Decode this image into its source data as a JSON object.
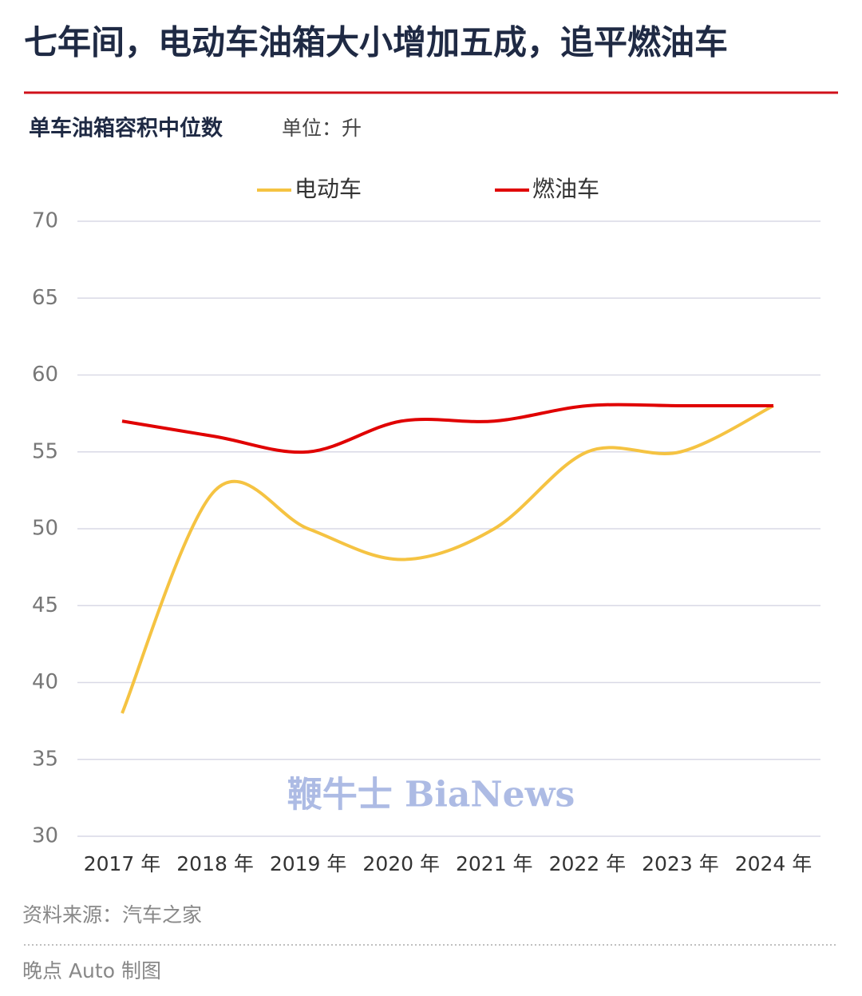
{
  "chart_data": {
    "type": "line",
    "title": "七年间，电动车油箱大小增加五成，追平燃油车",
    "subtitle": "单车油箱容积中位数",
    "unit_label": "单位：升",
    "source": "资料来源：汽车之家",
    "credit": "晚点 Auto 制图",
    "watermark": "鞭牛士 BiaNews",
    "categories": [
      "2017 年",
      "2018 年",
      "2019 年",
      "2020 年",
      "2021 年",
      "2022 年",
      "2023 年",
      "2024 年"
    ],
    "series": [
      {
        "name": "电动车",
        "color": "#f5c342",
        "values": [
          38,
          52.5,
          50,
          48,
          50,
          55,
          55,
          58
        ]
      },
      {
        "name": "燃油车",
        "color": "#e00000",
        "values": [
          57,
          56,
          55,
          57,
          57,
          58,
          58,
          58
        ]
      }
    ],
    "ylim": [
      30,
      70
    ],
    "yticks": [
      30,
      35,
      40,
      45,
      50,
      55,
      60,
      65,
      70
    ],
    "grid": true,
    "smooth": true
  }
}
